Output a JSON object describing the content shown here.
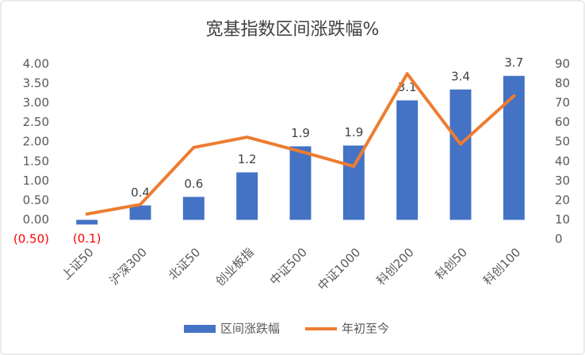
{
  "chart_data": {
    "type": "bar",
    "title": "宽基指数区间涨跌幅%",
    "categories": [
      "上证50",
      "沪深300",
      "北证50",
      "创业板指",
      "中证500",
      "中证1000",
      "科创200",
      "科创50",
      "科创100"
    ],
    "series": [
      {
        "name": "区间涨跌幅",
        "type": "bar",
        "color": "#4472c4",
        "values": [
          -0.12,
          0.37,
          0.59,
          1.22,
          1.89,
          1.91,
          3.07,
          3.35,
          3.7
        ],
        "value_labels": [
          "(0.1)",
          "0.4",
          "0.6",
          "1.2",
          "1.9",
          "1.9",
          "3.1",
          "3.4",
          "3.7"
        ]
      },
      {
        "name": "年初至今",
        "type": "line",
        "color": "#ed7d31",
        "axis": "y2",
        "values": [
          13,
          17.9,
          47.2,
          52.5,
          45.2,
          37.5,
          85.1,
          48.9,
          73.7
        ]
      }
    ],
    "ylim": [
      -0.5,
      4
    ],
    "yticks": [
      {
        "value": -0.5,
        "label": "(0.50)"
      },
      {
        "value": 0,
        "label": "0.00"
      },
      {
        "value": 0.5,
        "label": "0.50"
      },
      {
        "value": 1,
        "label": "1.00"
      },
      {
        "value": 1.5,
        "label": "1.50"
      },
      {
        "value": 2,
        "label": "2.00"
      },
      {
        "value": 2.5,
        "label": "2.50"
      },
      {
        "value": 3,
        "label": "3.00"
      },
      {
        "value": 3.5,
        "label": "3.50"
      },
      {
        "value": 4,
        "label": "4.00"
      }
    ],
    "y2lim": [
      0,
      90
    ],
    "y2ticks": [
      0,
      10,
      20,
      30,
      40,
      50,
      60,
      70,
      80,
      90
    ],
    "negative_color": "#ff0000",
    "grid": false,
    "legend": "bottom"
  }
}
